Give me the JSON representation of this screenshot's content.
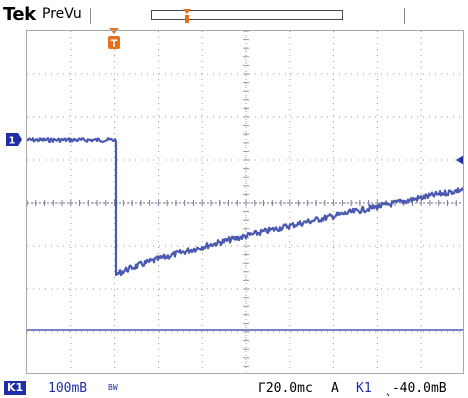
{
  "header": {
    "brand": "Tek",
    "mode": "PreVu"
  },
  "markers": {
    "trigger_position": "T",
    "channel1": "1"
  },
  "footer": {
    "channel_badge": "K1",
    "volts_per_div": "100mB",
    "bandwidth_limit": "BW",
    "time_per_div": "Γ20.0mc",
    "trigger_mode": "A",
    "trigger_source": "K1",
    "trigger_level": "ˎ‑40.0mB"
  },
  "colors": {
    "trace": "#4a5ab0",
    "trigger_marker": "#e8701c",
    "label_blue": "#1f2ea6"
  }
}
